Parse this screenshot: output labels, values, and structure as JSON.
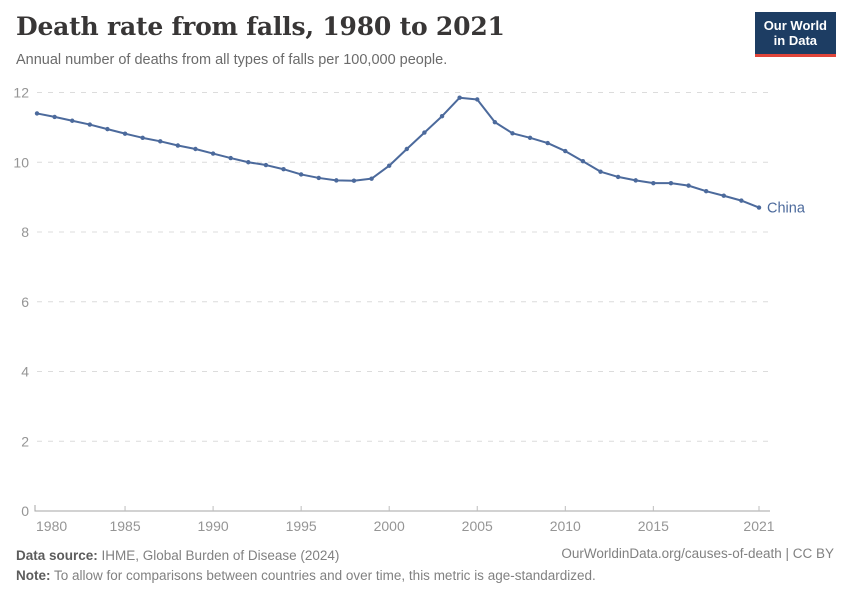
{
  "header": {
    "title": "Death rate from falls, 1980 to 2021",
    "subtitle": "Annual number of deaths from all types of falls per 100,000 people.",
    "logo_line1": "Our World",
    "logo_line2": "in Data",
    "logo_bg": "#1d3d63",
    "logo_accent": "#e0453a"
  },
  "chart_data": {
    "type": "line",
    "title": "Death rate from falls, 1980 to 2021",
    "xlabel": "",
    "ylabel": "",
    "xlim": [
      1980,
      2021
    ],
    "ylim": [
      0,
      12
    ],
    "grid": "horizontal-dashed",
    "legend_position": "end-of-line",
    "x_ticks": [
      1980,
      1985,
      1990,
      1995,
      2000,
      2005,
      2010,
      2015,
      2021
    ],
    "y_ticks": [
      0,
      2,
      4,
      6,
      8,
      10,
      12
    ],
    "series": [
      {
        "name": "China",
        "color": "#4C6A9C",
        "x": [
          1980,
          1981,
          1982,
          1983,
          1984,
          1985,
          1986,
          1987,
          1988,
          1989,
          1990,
          1991,
          1992,
          1993,
          1994,
          1995,
          1996,
          1997,
          1998,
          1999,
          2000,
          2001,
          2002,
          2003,
          2004,
          2005,
          2006,
          2007,
          2008,
          2009,
          2010,
          2011,
          2012,
          2013,
          2014,
          2015,
          2016,
          2017,
          2018,
          2019,
          2020,
          2021
        ],
        "values": [
          11.4,
          11.3,
          11.19,
          11.08,
          10.95,
          10.82,
          10.7,
          10.6,
          10.48,
          10.38,
          10.25,
          10.12,
          10.0,
          9.92,
          9.8,
          9.65,
          9.55,
          9.48,
          9.47,
          9.53,
          9.9,
          10.38,
          10.85,
          11.32,
          11.85,
          11.8,
          11.15,
          10.83,
          10.7,
          10.55,
          10.32,
          10.03,
          9.73,
          9.58,
          9.48,
          9.4,
          9.4,
          9.33,
          9.17,
          9.04,
          8.9,
          8.7
        ]
      }
    ]
  },
  "footer": {
    "source_label": "Data source:",
    "source_text": " IHME, Global Burden of Disease (2024)",
    "note_label": "Note:",
    "note_text": " To allow for comparisons between countries and over time, this metric is age-standardized.",
    "link": "OurWorldinData.org/causes-of-death | CC BY"
  }
}
